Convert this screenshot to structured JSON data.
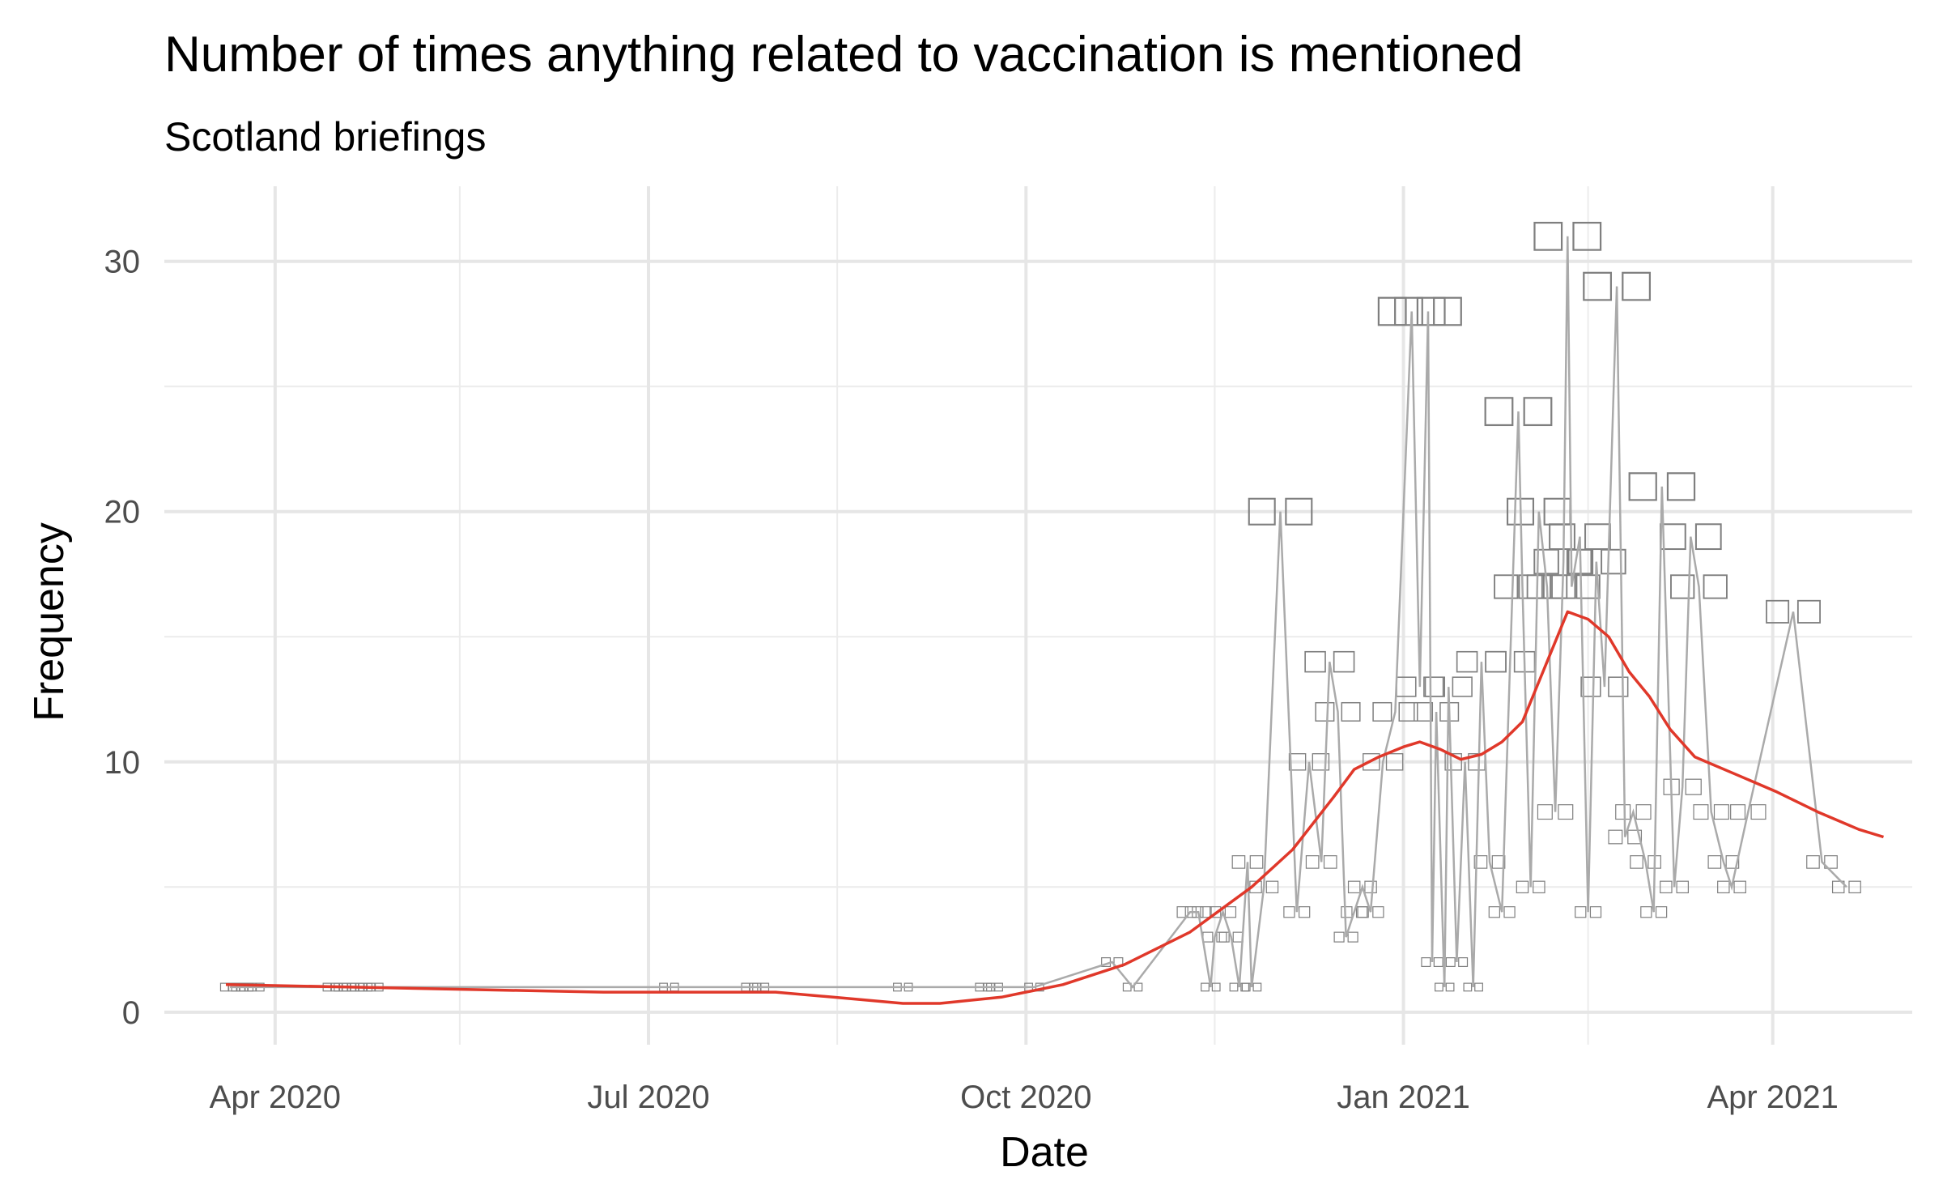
{
  "chart_data": {
    "type": "line",
    "title": "Number of times anything related to vaccination is mentioned",
    "subtitle": "Scotland briefings",
    "xlabel": "Date",
    "ylabel": "Frequency",
    "xlim": [
      "2020-03-05",
      "2021-05-05"
    ],
    "ylim": [
      -1.3,
      33
    ],
    "x_ticks": [
      {
        "date": "2020-04-01",
        "label": "Apr 2020"
      },
      {
        "date": "2020-07-01",
        "label": "Jul 2020"
      },
      {
        "date": "2020-10-01",
        "label": "Oct 2020"
      },
      {
        "date": "2021-01-01",
        "label": "Jan 2021"
      },
      {
        "date": "2021-04-01",
        "label": "Apr 2021"
      }
    ],
    "x_minor_ticks": [
      "2020-05-16",
      "2020-08-16",
      "2020-11-16",
      "2021-02-15"
    ],
    "y_ticks": [
      0,
      10,
      20,
      30
    ],
    "y_minor_ticks": [
      5,
      15,
      25
    ],
    "grid": true,
    "colors": {
      "mentions": "#aaaaaa",
      "smooth": "#e0382a",
      "labels": "#7f7f7f"
    },
    "series": [
      {
        "type": "line",
        "points": [
          {
            "x": "2020-03-21",
            "y": 1
          },
          {
            "x": "2020-03-23",
            "y": 1
          },
          {
            "x": "2020-03-25",
            "y": 1
          },
          {
            "x": "2020-03-27",
            "y": 1
          },
          {
            "x": "2020-04-15",
            "y": 1
          },
          {
            "x": "2020-04-17",
            "y": 1
          },
          {
            "x": "2020-04-19",
            "y": 1
          },
          {
            "x": "2020-04-21",
            "y": 1
          },
          {
            "x": "2020-04-23",
            "y": 1
          },
          {
            "x": "2020-04-25",
            "y": 1
          },
          {
            "x": "2020-07-06",
            "y": 1
          },
          {
            "x": "2020-07-26",
            "y": 1
          },
          {
            "x": "2020-07-28",
            "y": 1
          },
          {
            "x": "2020-09-01",
            "y": 1
          },
          {
            "x": "2020-09-21",
            "y": 1
          },
          {
            "x": "2020-09-23",
            "y": 1
          },
          {
            "x": "2020-10-03",
            "y": 1
          },
          {
            "x": "2020-10-22",
            "y": 2
          },
          {
            "x": "2020-10-27",
            "y": 1
          },
          {
            "x": "2020-11-10",
            "y": 4
          },
          {
            "x": "2020-11-12",
            "y": 4
          },
          {
            "x": "2020-11-15",
            "y": 1
          },
          {
            "x": "2020-11-18",
            "y": 4
          },
          {
            "x": "2020-11-16",
            "y": 3
          },
          {
            "x": "2020-11-20",
            "y": 3
          },
          {
            "x": "2020-11-22",
            "y": 1
          },
          {
            "x": "2020-11-24",
            "y": 6
          },
          {
            "x": "2020-11-25",
            "y": 1
          },
          {
            "x": "2020-11-28",
            "y": 5
          },
          {
            "x": "2020-12-02",
            "y": 20
          },
          {
            "x": "2020-12-06",
            "y": 4
          },
          {
            "x": "2020-12-09",
            "y": 10
          },
          {
            "x": "2020-12-12",
            "y": 6
          },
          {
            "x": "2020-12-14",
            "y": 14
          },
          {
            "x": "2020-12-16",
            "y": 12
          },
          {
            "x": "2020-12-18",
            "y": 3
          },
          {
            "x": "2020-12-20",
            "y": 4
          },
          {
            "x": "2020-12-22",
            "y": 5
          },
          {
            "x": "2020-12-24",
            "y": 4
          },
          {
            "x": "2020-12-27",
            "y": 10
          },
          {
            "x": "2020-12-30",
            "y": 12
          },
          {
            "x": "2021-01-03",
            "y": 28
          },
          {
            "x": "2021-01-05",
            "y": 13
          },
          {
            "x": "2021-01-07",
            "y": 28
          },
          {
            "x": "2021-01-08",
            "y": 2
          },
          {
            "x": "2021-01-09",
            "y": 12
          },
          {
            "x": "2021-01-11",
            "y": 1
          },
          {
            "x": "2021-01-12",
            "y": 13
          },
          {
            "x": "2021-01-14",
            "y": 2
          },
          {
            "x": "2021-01-16",
            "y": 10
          },
          {
            "x": "2021-01-18",
            "y": 1
          },
          {
            "x": "2021-01-20",
            "y": 14
          },
          {
            "x": "2021-01-22",
            "y": 6
          },
          {
            "x": "2021-01-25",
            "y": 4
          },
          {
            "x": "2021-01-27",
            "y": 14
          },
          {
            "x": "2021-01-29",
            "y": 24
          },
          {
            "x": "2021-01-30",
            "y": 17
          },
          {
            "x": "2021-02-01",
            "y": 5
          },
          {
            "x": "2021-02-03",
            "y": 20
          },
          {
            "x": "2021-02-05",
            "y": 17
          },
          {
            "x": "2021-02-07",
            "y": 8
          },
          {
            "x": "2021-02-09",
            "y": 18
          },
          {
            "x": "2021-02-10",
            "y": 31
          },
          {
            "x": "2021-02-11",
            "y": 17
          },
          {
            "x": "2021-02-13",
            "y": 19
          },
          {
            "x": "2021-02-15",
            "y": 4
          },
          {
            "x": "2021-02-17",
            "y": 18
          },
          {
            "x": "2021-02-19",
            "y": 13
          },
          {
            "x": "2021-02-22",
            "y": 29
          },
          {
            "x": "2021-02-24",
            "y": 7
          },
          {
            "x": "2021-02-26",
            "y": 8
          },
          {
            "x": "2021-03-01",
            "y": 6
          },
          {
            "x": "2021-03-03",
            "y": 4
          },
          {
            "x": "2021-03-05",
            "y": 21
          },
          {
            "x": "2021-03-08",
            "y": 5
          },
          {
            "x": "2021-03-10",
            "y": 9
          },
          {
            "x": "2021-03-12",
            "y": 19
          },
          {
            "x": "2021-03-14",
            "y": 17
          },
          {
            "x": "2021-03-17",
            "y": 8
          },
          {
            "x": "2021-03-20",
            "y": 6
          },
          {
            "x": "2021-03-22",
            "y": 5
          },
          {
            "x": "2021-03-26",
            "y": 8
          },
          {
            "x": "2021-04-06",
            "y": 16
          },
          {
            "x": "2021-04-13",
            "y": 6
          },
          {
            "x": "2021-04-19",
            "y": 5
          }
        ]
      },
      {
        "type": "smooth",
        "points": [
          {
            "x": "2020-03-20",
            "y": 1.1
          },
          {
            "x": "2020-04-20",
            "y": 1.0
          },
          {
            "x": "2020-05-20",
            "y": 0.9
          },
          {
            "x": "2020-06-20",
            "y": 0.8
          },
          {
            "x": "2020-07-20",
            "y": 0.8
          },
          {
            "x": "2020-08-01",
            "y": 0.8
          },
          {
            "x": "2020-08-15",
            "y": 0.6
          },
          {
            "x": "2020-09-01",
            "y": 0.35
          },
          {
            "x": "2020-09-10",
            "y": 0.35
          },
          {
            "x": "2020-09-25",
            "y": 0.6
          },
          {
            "x": "2020-10-10",
            "y": 1.1
          },
          {
            "x": "2020-10-25",
            "y": 1.9
          },
          {
            "x": "2020-11-10",
            "y": 3.2
          },
          {
            "x": "2020-11-25",
            "y": 5.0
          },
          {
            "x": "2020-12-05",
            "y": 6.5
          },
          {
            "x": "2020-12-15",
            "y": 8.6
          },
          {
            "x": "2020-12-20",
            "y": 9.7
          },
          {
            "x": "2020-12-26",
            "y": 10.2
          },
          {
            "x": "2021-01-01",
            "y": 10.6
          },
          {
            "x": "2021-01-05",
            "y": 10.8
          },
          {
            "x": "2021-01-10",
            "y": 10.5
          },
          {
            "x": "2021-01-15",
            "y": 10.1
          },
          {
            "x": "2021-01-20",
            "y": 10.3
          },
          {
            "x": "2021-01-25",
            "y": 10.8
          },
          {
            "x": "2021-01-30",
            "y": 11.6
          },
          {
            "x": "2021-02-10",
            "y": 16.0
          },
          {
            "x": "2021-02-15",
            "y": 15.7
          },
          {
            "x": "2021-02-20",
            "y": 15.0
          },
          {
            "x": "2021-02-25",
            "y": 13.6
          },
          {
            "x": "2021-03-02",
            "y": 12.6
          },
          {
            "x": "2021-03-07",
            "y": 11.3
          },
          {
            "x": "2021-03-13",
            "y": 10.2
          },
          {
            "x": "2021-03-23",
            "y": 9.5
          },
          {
            "x": "2021-04-02",
            "y": 8.8
          },
          {
            "x": "2021-04-12",
            "y": 8.0
          },
          {
            "x": "2021-04-22",
            "y": 7.3
          },
          {
            "x": "2021-04-28",
            "y": 7.0
          }
        ]
      }
    ]
  }
}
